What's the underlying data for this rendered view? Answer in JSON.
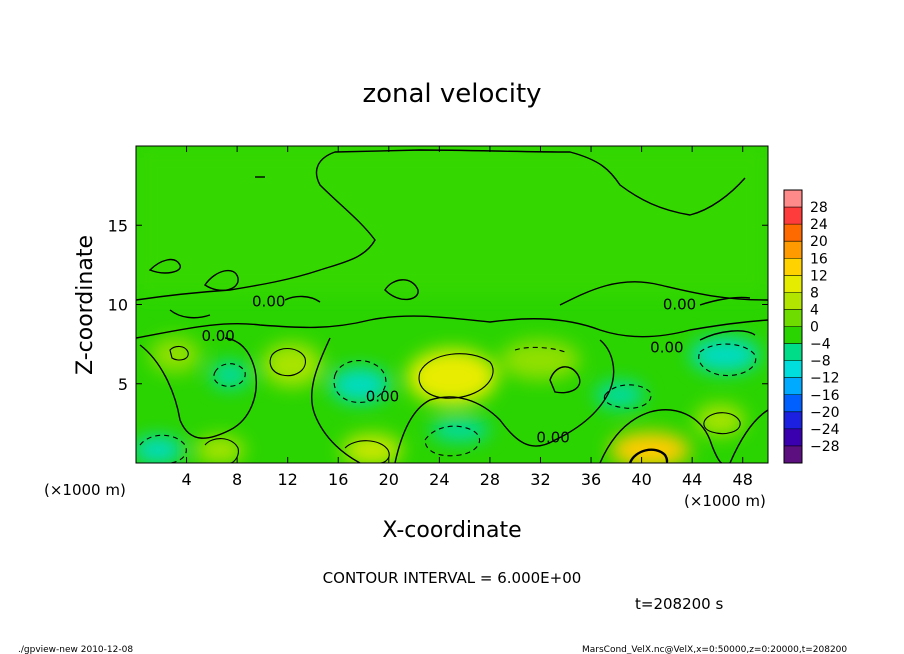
{
  "chart_data": {
    "type": "heatmap",
    "title": "zonal velocity",
    "xlabel": "X-coordinate",
    "ylabel": "Z-coordinate",
    "x_unit_label": "(×1000 m)",
    "y_unit_label": "(×1000 m)",
    "xlim": [
      0,
      50
    ],
    "ylim": [
      0,
      20
    ],
    "x_ticks": [
      4,
      8,
      12,
      16,
      20,
      24,
      28,
      32,
      36,
      40,
      44,
      48
    ],
    "y_ticks": [
      5,
      10,
      15
    ],
    "colorbar": {
      "levels": [
        28,
        24,
        20,
        16,
        12,
        8,
        4,
        0,
        -4,
        -8,
        -12,
        -16,
        -20,
        -24,
        -28
      ],
      "colors": [
        "#ff8a8a",
        "#ff3c3c",
        "#ff6a00",
        "#ff9a00",
        "#ffd200",
        "#e6ec00",
        "#b2e600",
        "#6fdc00",
        "#2ad400",
        "#00dd88",
        "#00dddd",
        "#00aaff",
        "#0060ff",
        "#1c20e0",
        "#3a00b0",
        "#5c1080"
      ]
    },
    "contour_labels": [
      {
        "x": 10.5,
        "z": 10.2,
        "text": "0.00"
      },
      {
        "x": 6.5,
        "z": 8.0,
        "text": "0.00"
      },
      {
        "x": 19.5,
        "z": 4.2,
        "text": "0.00"
      },
      {
        "x": 33.0,
        "z": 1.6,
        "text": "0.00"
      },
      {
        "x": 42.0,
        "z": 7.3,
        "text": "0.00"
      },
      {
        "x": 43.0,
        "z": 10.0,
        "text": "0.00"
      }
    ],
    "field_features": [
      {
        "x": 25.0,
        "z": 5.5,
        "value": 8
      },
      {
        "x": 18.5,
        "z": 4.5,
        "value": -8
      },
      {
        "x": 45.5,
        "z": 6.5,
        "value": -8
      },
      {
        "x": 1.5,
        "z": 0.8,
        "value": -8
      },
      {
        "x": 40.0,
        "z": 0.8,
        "value": 12
      },
      {
        "x": 17.5,
        "z": 1.0,
        "value": 8
      },
      {
        "x": 12.5,
        "z": 6.5,
        "value": 8
      }
    ],
    "contour_interval_text": "CONTOUR INTERVAL = 6.000E+00",
    "time_text": "t=208200 s"
  },
  "footer": {
    "left": "./gpview-new  2010-12-08",
    "right": "MarsCond_VelX.nc@VelX,x=0:50000,z=0:20000,t=208200"
  },
  "colors": {
    "base_field": "#2ad400",
    "contour_line": "#000000"
  }
}
